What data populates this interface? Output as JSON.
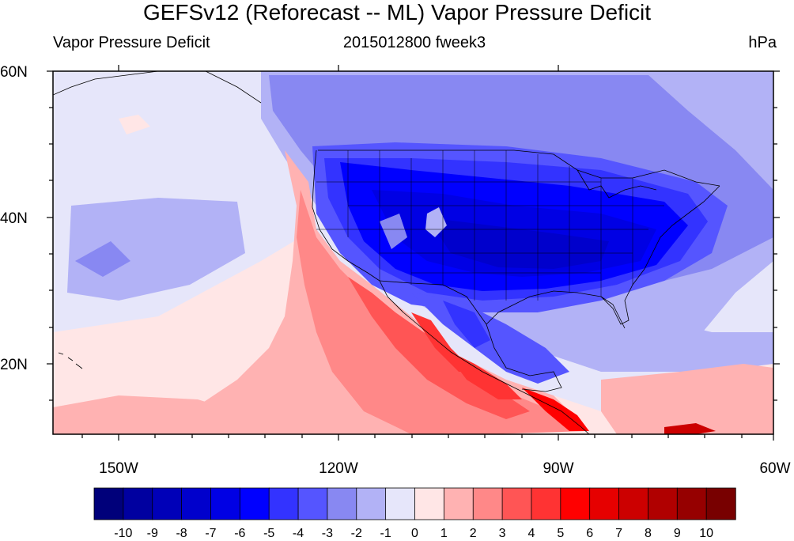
{
  "title": "GEFSv12 (Reforecast -- ML) Vapor Pressure Deficit",
  "subtitle_left": "Vapor Pressure Deficit",
  "subtitle_center": "2015012800 fweek3",
  "subtitle_right": "hPa",
  "lat_labels": [
    "60N",
    "40N",
    "20N"
  ],
  "lon_labels": [
    "150W",
    "120W",
    "90W",
    "60W"
  ],
  "colorbar": {
    "tick_labels": [
      "-10",
      "-9",
      "-8",
      "-7",
      "-6",
      "-5",
      "-4",
      "-3",
      "-2",
      "-1",
      "0",
      "1",
      "2",
      "3",
      "4",
      "5",
      "6",
      "7",
      "8",
      "9",
      "10"
    ],
    "colors": [
      "#00007a",
      "#0000a0",
      "#0000b8",
      "#0000cc",
      "#0000e4",
      "#0000ff",
      "#3333ff",
      "#5555ff",
      "#8888f2",
      "#b2b2f6",
      "#e6e6fa",
      "#ffe6e6",
      "#ffb2b2",
      "#ff8888",
      "#ff5555",
      "#ff3333",
      "#ff0000",
      "#e60000",
      "#cc0000",
      "#b00000",
      "#960000",
      "#780000"
    ]
  },
  "map": {
    "lat_range": [
      10,
      60
    ],
    "lon_range": [
      -160,
      -60
    ],
    "projection": "cylindrical-equidistant",
    "ocean_base_color": "#e6e6fa",
    "continent_outline_color": "#000000"
  }
}
